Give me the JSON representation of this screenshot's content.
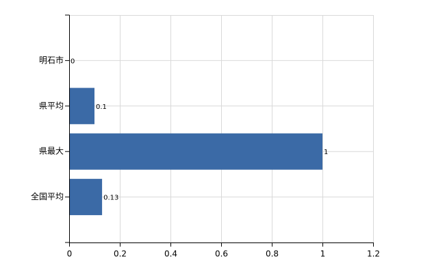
{
  "chart_data": {
    "type": "bar",
    "orientation": "horizontal",
    "categories": [
      "明石市",
      "県平均",
      "県最大",
      "全国平均"
    ],
    "values": [
      0,
      0.1,
      1,
      0.13
    ],
    "color": "#3b6aa6",
    "xlim": [
      0,
      1.2
    ],
    "xticks": [
      0,
      0.2,
      0.4,
      0.6,
      0.8,
      1,
      1.2
    ],
    "grid": true
  }
}
